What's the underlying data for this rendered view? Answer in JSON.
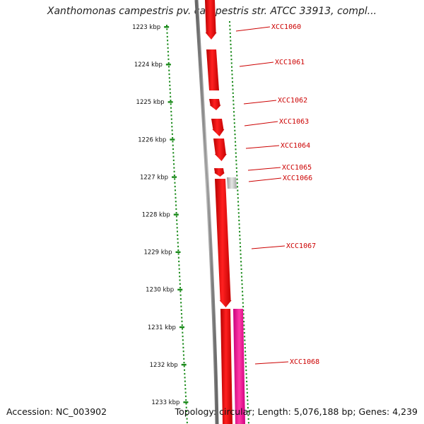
{
  "title": "Xanthomonas campestris pv. campestris str. ATCC 33913, compl...",
  "footer": {
    "accession": "Accession: NC_003902",
    "topology": "Topology: circular; Length: 5,076,188 bp; Genes: 4,239"
  },
  "colors": {
    "gene_red": "#ff0000",
    "gene_pink": "#ff1493",
    "gene_grey": "#bdbdbd",
    "backbone": "#808080",
    "dots": "#1a8a1a",
    "label": "#cc0000"
  },
  "scale": {
    "unit": "kbp",
    "ticks": [
      {
        "label": "1223 kbp"
      },
      {
        "label": "1224 kbp"
      },
      {
        "label": "1225 kbp"
      },
      {
        "label": "1226 kbp"
      },
      {
        "label": "1227 kbp"
      },
      {
        "label": "1228 kbp"
      },
      {
        "label": "1229 kbp"
      },
      {
        "label": "1230 kbp"
      },
      {
        "label": "1231 kbp"
      },
      {
        "label": "1232 kbp"
      },
      {
        "label": "1233 kbp"
      }
    ]
  },
  "genes": [
    {
      "label": "XCC1060",
      "color": "red"
    },
    {
      "label": "XCC1061",
      "color": "red"
    },
    {
      "label": "XCC1062",
      "color": "red"
    },
    {
      "label": "XCC1063",
      "color": "red"
    },
    {
      "label": "XCC1064",
      "color": "red"
    },
    {
      "label": "XCC1065",
      "color": "red"
    },
    {
      "label": "XCC1066",
      "color": "grey"
    },
    {
      "label": "XCC1067",
      "color": "red"
    },
    {
      "label": "XCC1068",
      "color": "pink"
    }
  ]
}
